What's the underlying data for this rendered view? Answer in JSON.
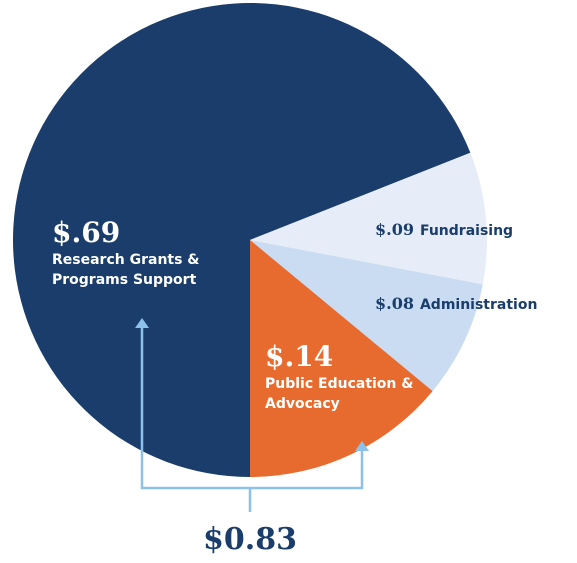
{
  "chart_data": {
    "type": "pie",
    "categories": [
      "Research Grants & Programs Support",
      "Fundraising",
      "Administration",
      "Public Education & Advocacy"
    ],
    "values": [
      0.69,
      0.09,
      0.08,
      0.14
    ],
    "value_labels": [
      "$.69",
      "$.09",
      "$.08",
      "$.14"
    ],
    "colors": [
      "#1a3d6b",
      "#e6edf8",
      "#c9dcf2",
      "#e76b2e"
    ],
    "annotation": "$0.83"
  }
}
